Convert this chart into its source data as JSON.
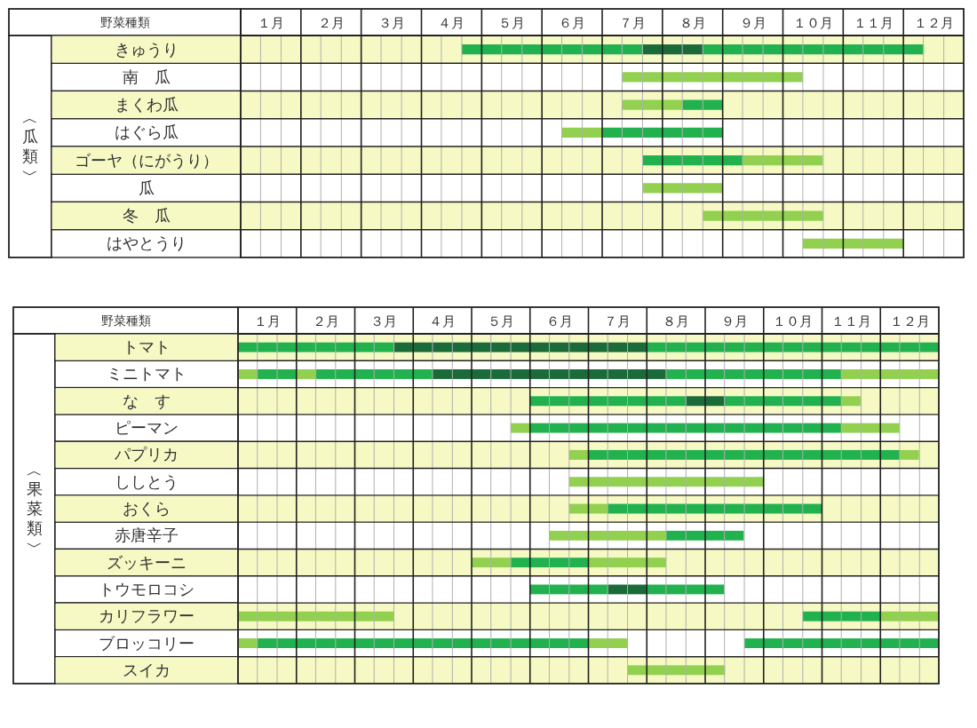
{
  "chart_data": [
    {
      "type": "bar",
      "orientation": "horizontal",
      "ylabel": "野菜種類",
      "annotations": [
        "︿瓜類﹀"
      ],
      "categories": [
        "きゅうり",
        "南　瓜",
        "まくわ瓜",
        "はぐら瓜",
        "ゴーヤ（にがうり）",
        "瓜",
        "冬　瓜",
        "はやとうり"
      ],
      "xlim": [
        1,
        13
      ],
      "xticks": [
        {
          "value": 1.33,
          "label": null
        },
        {
          "value": 1.5,
          "label": "１月"
        },
        {
          "value": 1.67,
          "label": null
        },
        {
          "value": 2,
          "label": null
        },
        {
          "value": 2.33,
          "label": null
        },
        {
          "value": 2.5,
          "label": "２月"
        },
        {
          "value": 2.67,
          "label": null
        },
        {
          "value": 3,
          "label": null
        },
        {
          "value": 3.33,
          "label": null
        },
        {
          "value": 3.5,
          "label": "３月"
        },
        {
          "value": 3.67,
          "label": null
        },
        {
          "value": 4,
          "label": null
        },
        {
          "value": 4.33,
          "label": null
        },
        {
          "value": 4.5,
          "label": "４月"
        },
        {
          "value": 4.67,
          "label": null
        },
        {
          "value": 5,
          "label": null
        },
        {
          "value": 5.33,
          "label": null
        },
        {
          "value": 5.5,
          "label": "５月"
        },
        {
          "value": 5.67,
          "label": null
        },
        {
          "value": 6,
          "label": null
        },
        {
          "value": 6.33,
          "label": null
        },
        {
          "value": 6.5,
          "label": "６月"
        },
        {
          "value": 6.67,
          "label": null
        },
        {
          "value": 7,
          "label": null
        },
        {
          "value": 7.33,
          "label": null
        },
        {
          "value": 7.5,
          "label": "７月"
        },
        {
          "value": 7.67,
          "label": null
        },
        {
          "value": 8,
          "label": null
        },
        {
          "value": 8.33,
          "label": null
        },
        {
          "value": 8.5,
          "label": "８月"
        },
        {
          "value": 8.67,
          "label": null
        },
        {
          "value": 9,
          "label": null
        },
        {
          "value": 9.33,
          "label": null
        },
        {
          "value": 9.5,
          "label": "９月"
        },
        {
          "value": 9.67,
          "label": null
        },
        {
          "value": 10,
          "label": null
        },
        {
          "value": 10.33,
          "label": null
        },
        {
          "value": 10.5,
          "label": "１０月"
        },
        {
          "value": 10.67,
          "label": null
        },
        {
          "value": 11,
          "label": null
        },
        {
          "value": 11.33,
          "label": null
        },
        {
          "value": 11.5,
          "label": "１１月"
        },
        {
          "value": 11.67,
          "label": null
        },
        {
          "value": 12,
          "label": null
        },
        {
          "value": 12.33,
          "label": null
        },
        {
          "value": 12.5,
          "label": "１２月"
        },
        {
          "value": 12.67,
          "label": null
        }
      ],
      "grid": true,
      "bands": [
        {
          "axis": "y",
          "from": "きゅうり",
          "to": "きゅうり",
          "color": "#f6f9c3"
        },
        {
          "axis": "y",
          "from": "まくわ瓜",
          "to": "まくわ瓜",
          "color": "#f6f9c3"
        },
        {
          "axis": "y",
          "from": "ゴーヤ（にがうり）",
          "to": "ゴーヤ（にがうり）",
          "color": "#f6f9c3"
        },
        {
          "axis": "y",
          "from": "冬　瓜",
          "to": "冬　瓜",
          "color": "#f6f9c3"
        }
      ],
      "series": [
        {
          "base": [
            4.67,
            7.33,
            7.33,
            6.33,
            7.67,
            7.67,
            8.67,
            10.33
          ],
          "values": [
            3,
            3,
            1,
            0.67,
            1.67,
            1.33,
            2,
            1.67
          ],
          "colors": [
            "#21b14f",
            "#92d050",
            "#92d050",
            "#92d050",
            "#21b14f",
            "#92d050",
            "#92d050",
            "#92d050"
          ]
        },
        {
          "base": [
            7.67,
            null,
            8.33,
            7,
            9.33,
            null,
            null,
            null
          ],
          "values": [
            1,
            null,
            0.67,
            2,
            1.33,
            null,
            null,
            null
          ],
          "colors": [
            "#1b6b3a",
            null,
            "#21b14f",
            "#21b14f",
            "#92d050",
            null,
            null,
            null
          ]
        },
        {
          "base": [
            8.67,
            null,
            null,
            null,
            null,
            null,
            null,
            null
          ],
          "values": [
            3.67,
            null,
            null,
            null,
            null,
            null,
            null,
            null
          ],
          "colors": [
            "#21b14f",
            null,
            null,
            null,
            null,
            null,
            null,
            null
          ]
        }
      ]
    },
    {
      "type": "bar",
      "orientation": "horizontal",
      "ylabel": "野菜種類",
      "annotations": [
        "︿果菜類﹀"
      ],
      "categories": [
        "トマト",
        "ミニトマト",
        "な　す",
        "ピーマン",
        "パプリカ",
        "ししとう",
        "おくら",
        "赤唐辛子",
        "ズッキーニ",
        "トウモロコシ",
        "カリフラワー",
        "ブロッコリー",
        "スイカ"
      ],
      "xlim": [
        1,
        13
      ],
      "xticks": [
        {
          "value": 1.33,
          "label": null
        },
        {
          "value": 1.5,
          "label": "１月"
        },
        {
          "value": 1.67,
          "label": null
        },
        {
          "value": 2,
          "label": null
        },
        {
          "value": 2.33,
          "label": null
        },
        {
          "value": 2.5,
          "label": "２月"
        },
        {
          "value": 2.67,
          "label": null
        },
        {
          "value": 3,
          "label": null
        },
        {
          "value": 3.33,
          "label": null
        },
        {
          "value": 3.5,
          "label": "３月"
        },
        {
          "value": 3.67,
          "label": null
        },
        {
          "value": 4,
          "label": null
        },
        {
          "value": 4.33,
          "label": null
        },
        {
          "value": 4.5,
          "label": "４月"
        },
        {
          "value": 4.67,
          "label": null
        },
        {
          "value": 5,
          "label": null
        },
        {
          "value": 5.33,
          "label": null
        },
        {
          "value": 5.5,
          "label": "５月"
        },
        {
          "value": 5.67,
          "label": null
        },
        {
          "value": 6,
          "label": null
        },
        {
          "value": 6.33,
          "label": null
        },
        {
          "value": 6.5,
          "label": "６月"
        },
        {
          "value": 6.67,
          "label": null
        },
        {
          "value": 7,
          "label": null
        },
        {
          "value": 7.33,
          "label": null
        },
        {
          "value": 7.5,
          "label": "７月"
        },
        {
          "value": 7.67,
          "label": null
        },
        {
          "value": 8,
          "label": null
        },
        {
          "value": 8.33,
          "label": null
        },
        {
          "value": 8.5,
          "label": "８月"
        },
        {
          "value": 8.67,
          "label": null
        },
        {
          "value": 9,
          "label": null
        },
        {
          "value": 9.33,
          "label": null
        },
        {
          "value": 9.5,
          "label": "９月"
        },
        {
          "value": 9.67,
          "label": null
        },
        {
          "value": 10,
          "label": null
        },
        {
          "value": 10.33,
          "label": null
        },
        {
          "value": 10.5,
          "label": "１０月"
        },
        {
          "value": 10.67,
          "label": null
        },
        {
          "value": 11,
          "label": null
        },
        {
          "value": 11.33,
          "label": null
        },
        {
          "value": 11.5,
          "label": "１１月"
        },
        {
          "value": 11.67,
          "label": null
        },
        {
          "value": 12,
          "label": null
        },
        {
          "value": 12.33,
          "label": null
        },
        {
          "value": 12.5,
          "label": "１２月"
        },
        {
          "value": 12.67,
          "label": null
        }
      ],
      "grid": true,
      "bands": [
        {
          "axis": "y",
          "from": "トマト",
          "to": "トマト",
          "color": "#f6f9c3"
        },
        {
          "axis": "y",
          "from": "な　す",
          "to": "な　す",
          "color": "#f6f9c3"
        },
        {
          "axis": "y",
          "from": "パプリカ",
          "to": "パプリカ",
          "color": "#f6f9c3"
        },
        {
          "axis": "y",
          "from": "おくら",
          "to": "おくら",
          "color": "#f6f9c3"
        },
        {
          "axis": "y",
          "from": "ズッキーニ",
          "to": "ズッキーニ",
          "color": "#f6f9c3"
        },
        {
          "axis": "y",
          "from": "カリフラワー",
          "to": "カリフラワー",
          "color": "#f6f9c3"
        },
        {
          "axis": "y",
          "from": "スイカ",
          "to": "スイカ",
          "color": "#f6f9c3"
        }
      ],
      "series": [
        {
          "base": [
            1,
            1,
            6,
            5.67,
            6.67,
            6.67,
            6.67,
            6.33,
            5,
            6,
            1,
            1,
            7.67
          ],
          "values": [
            2.67,
            0.33,
            2.67,
            0.33,
            0.33,
            3.33,
            0.67,
            2,
            0.67,
            1.33,
            2.67,
            0.33,
            1.67
          ],
          "colors": [
            "#21b14f",
            "#92d050",
            "#21b14f",
            "#92d050",
            "#92d050",
            "#92d050",
            "#92d050",
            "#92d050",
            "#92d050",
            "#21b14f",
            "#92d050",
            "#92d050",
            "#92d050"
          ]
        },
        {
          "base": [
            3.67,
            1.33,
            8.67,
            6,
            7,
            null,
            7.33,
            8.33,
            5.67,
            7.33,
            10.67,
            1.33,
            null
          ],
          "values": [
            4.33,
            0.67,
            0.67,
            5.33,
            5.33,
            null,
            3.67,
            1.33,
            1.33,
            0.67,
            1.33,
            5.67,
            null
          ],
          "colors": [
            "#1b6b3a",
            "#21b14f",
            "#1b6b3a",
            "#21b14f",
            "#21b14f",
            null,
            "#21b14f",
            "#21b14f",
            "#21b14f",
            "#1b6b3a",
            "#21b14f",
            "#21b14f",
            null
          ]
        },
        {
          "base": [
            8,
            2,
            9.33,
            11.33,
            12.33,
            null,
            null,
            null,
            7,
            8,
            12,
            7,
            null
          ],
          "values": [
            5,
            0.33,
            2,
            1,
            0.33,
            null,
            null,
            null,
            1.33,
            1.33,
            1,
            0.67,
            null
          ],
          "colors": [
            "#21b14f",
            "#92d050",
            "#21b14f",
            "#92d050",
            "#92d050",
            null,
            null,
            null,
            "#92d050",
            "#21b14f",
            "#92d050",
            "#92d050",
            null
          ]
        },
        {
          "base": [
            null,
            2.33,
            11.33,
            null,
            null,
            null,
            null,
            null,
            null,
            null,
            null,
            9.67,
            null
          ],
          "values": [
            null,
            2,
            0.33,
            null,
            null,
            null,
            null,
            null,
            null,
            null,
            null,
            3.33,
            null
          ],
          "colors": [
            null,
            "#21b14f",
            "#92d050",
            null,
            null,
            null,
            null,
            null,
            null,
            null,
            null,
            "#21b14f",
            null
          ]
        },
        {
          "base": [
            null,
            4.33,
            null,
            null,
            null,
            null,
            null,
            null,
            null,
            null,
            null,
            null,
            null
          ],
          "values": [
            null,
            4,
            null,
            null,
            null,
            null,
            null,
            null,
            null,
            null,
            null,
            null,
            null
          ],
          "colors": [
            null,
            "#1b6b3a",
            null,
            null,
            null,
            null,
            null,
            null,
            null,
            null,
            null,
            null,
            null
          ]
        },
        {
          "base": [
            null,
            8.33,
            null,
            null,
            null,
            null,
            null,
            null,
            null,
            null,
            null,
            null,
            null
          ],
          "values": [
            null,
            3,
            null,
            null,
            null,
            null,
            null,
            null,
            null,
            null,
            null,
            null,
            null
          ],
          "colors": [
            null,
            "#21b14f",
            null,
            null,
            null,
            null,
            null,
            null,
            null,
            null,
            null,
            null,
            null
          ]
        },
        {
          "base": [
            null,
            11.33,
            null,
            null,
            null,
            null,
            null,
            null,
            null,
            null,
            null,
            null,
            null
          ],
          "values": [
            null,
            1.67,
            null,
            null,
            null,
            null,
            null,
            null,
            null,
            null,
            null,
            null,
            null
          ],
          "colors": [
            null,
            "#92d050",
            null,
            null,
            null,
            null,
            null,
            null,
            null,
            null,
            null,
            null,
            null
          ]
        }
      ]
    }
  ]
}
